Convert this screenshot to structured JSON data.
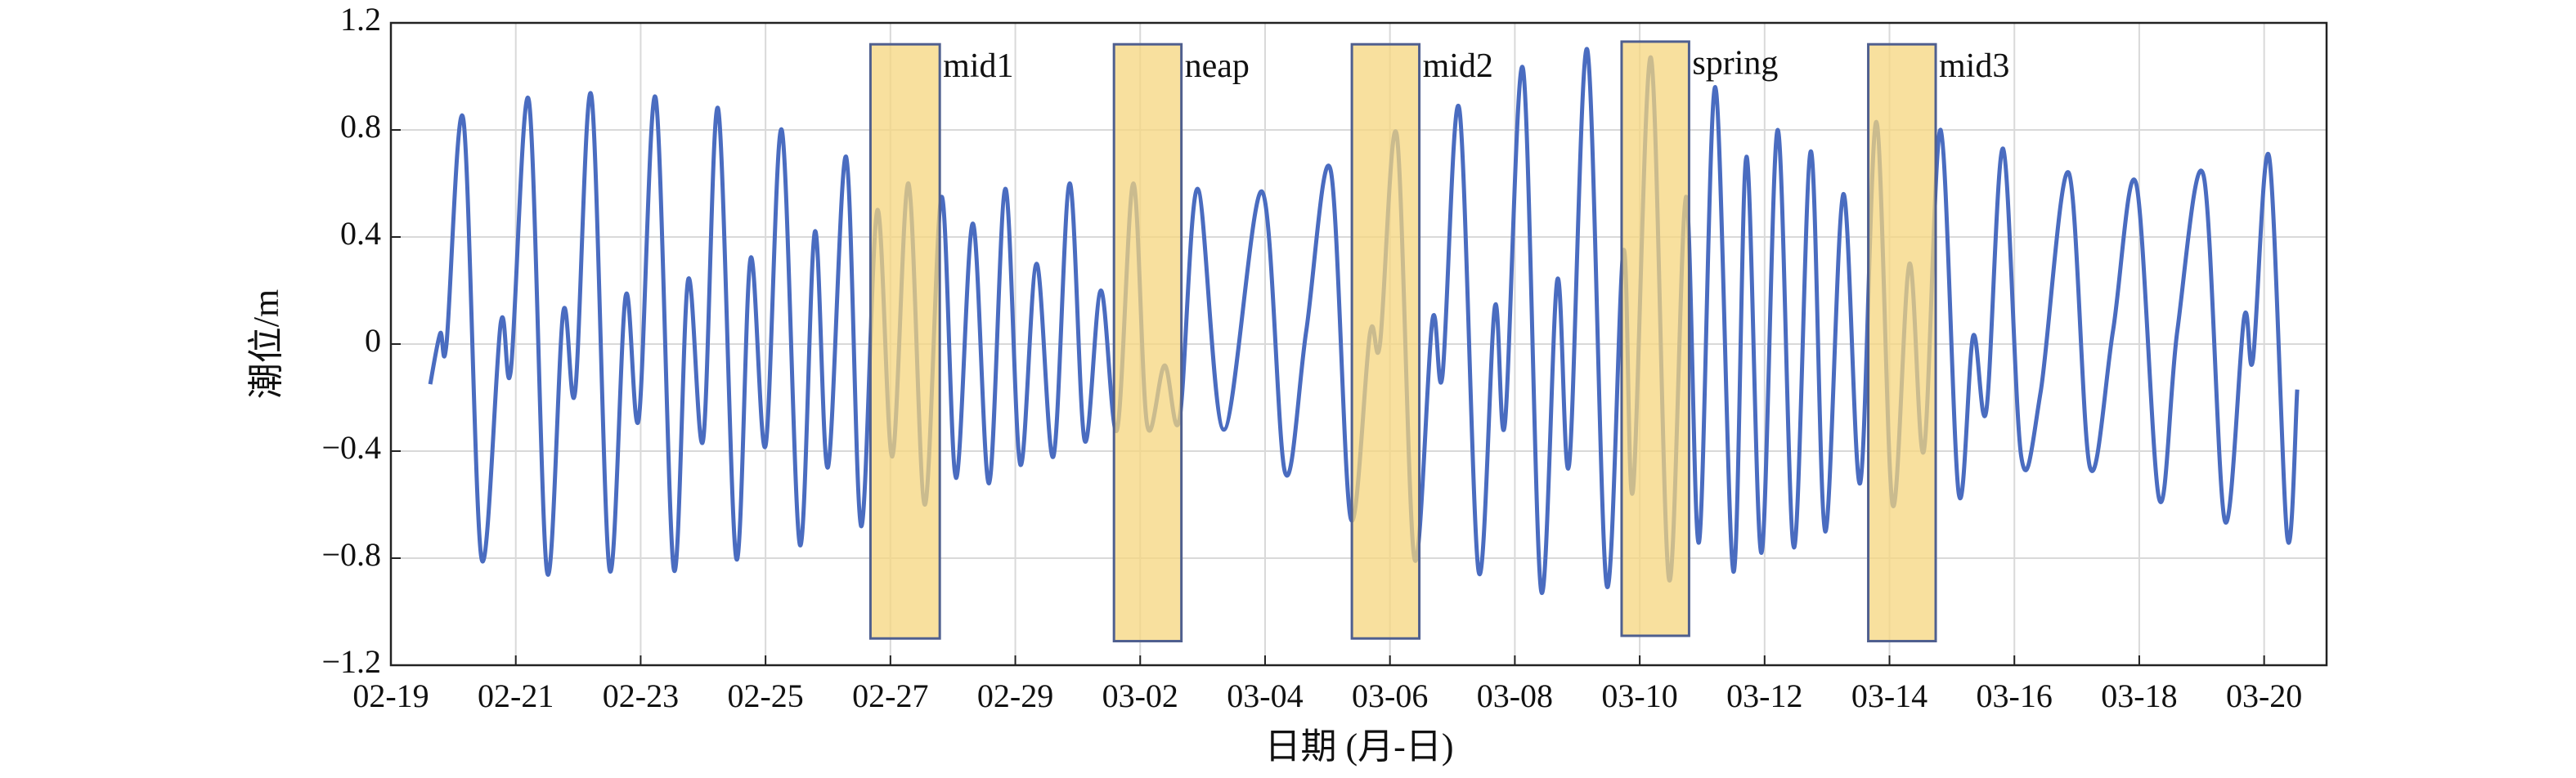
{
  "chart_data": {
    "type": "line",
    "x_label": "日期 (月-日)",
    "y_label": "潮位/m",
    "xlim": [
      0,
      31
    ],
    "ylim": [
      -1.2,
      1.2
    ],
    "xticks": [
      {
        "value": 0,
        "label": "02-19"
      },
      {
        "value": 2,
        "label": "02-21"
      },
      {
        "value": 4,
        "label": "02-23"
      },
      {
        "value": 6,
        "label": "02-25"
      },
      {
        "value": 8,
        "label": "02-27"
      },
      {
        "value": 10,
        "label": "02-29"
      },
      {
        "value": 12,
        "label": "03-02"
      },
      {
        "value": 14,
        "label": "03-04"
      },
      {
        "value": 16,
        "label": "03-06"
      },
      {
        "value": 18,
        "label": "03-08"
      },
      {
        "value": 20,
        "label": "03-10"
      },
      {
        "value": 22,
        "label": "03-12"
      },
      {
        "value": 24,
        "label": "03-14"
      },
      {
        "value": 26,
        "label": "03-16"
      },
      {
        "value": 28,
        "label": "03-18"
      },
      {
        "value": 30,
        "label": "03-20"
      }
    ],
    "yticks": [
      1.2,
      0.8,
      0.4,
      0,
      {
        "value": -0.4,
        "label": "−0.4"
      },
      {
        "value": -0.8,
        "label": "−0.8"
      },
      {
        "value": -1.2,
        "label": "−1.2"
      }
    ],
    "grid": true,
    "series": [
      {
        "color": "#4a6cc0",
        "x": [
          0.63,
          0.79,
          0.89,
          1.16,
          1.45,
          1.76,
          1.92,
          2.21,
          2.5,
          2.76,
          2.95,
          3.21,
          3.5,
          3.76,
          3.97,
          4.24,
          4.53,
          4.76,
          5.0,
          5.24,
          5.53,
          5.76,
          6.0,
          6.26,
          6.55,
          6.79,
          7.0,
          7.29,
          7.53,
          7.79,
          8.03,
          8.29,
          8.55,
          8.82,
          9.05,
          9.32,
          9.58,
          9.84,
          10.08,
          10.34,
          10.61,
          10.87,
          11.11,
          11.37,
          11.63,
          11.89,
          12.11,
          12.39,
          12.63,
          12.92,
          13.34,
          13.95,
          14.32,
          14.66,
          15.05,
          15.37,
          15.68,
          15.84,
          16.11,
          16.39,
          16.68,
          16.84,
          17.11,
          17.42,
          17.68,
          17.84,
          18.13,
          18.42,
          18.68,
          18.87,
          19.16,
          19.47,
          19.74,
          19.89,
          20.18,
          20.47,
          20.74,
          20.95,
          21.21,
          21.5,
          21.71,
          21.95,
          22.21,
          22.47,
          22.74,
          22.97,
          23.26,
          23.53,
          23.79,
          24.05,
          24.32,
          24.55,
          24.82,
          25.11,
          25.34,
          25.55,
          25.82,
          26.11,
          26.42,
          26.87,
          27.21,
          27.58,
          27.95,
          28.32,
          28.61,
          29.03,
          29.37,
          29.68,
          29.82,
          30.08,
          30.37,
          30.53
        ],
        "values": [
          -0.15,
          0.04,
          0.0,
          0.84,
          -0.8,
          0.08,
          -0.1,
          0.91,
          -0.85,
          0.12,
          -0.18,
          0.93,
          -0.84,
          0.18,
          -0.28,
          0.92,
          -0.84,
          0.24,
          -0.36,
          0.88,
          -0.8,
          0.32,
          -0.38,
          0.8,
          -0.75,
          0.42,
          -0.46,
          0.7,
          -0.68,
          0.5,
          -0.42,
          0.6,
          -0.6,
          0.55,
          -0.5,
          0.45,
          -0.52,
          0.58,
          -0.45,
          0.3,
          -0.42,
          0.6,
          -0.36,
          0.2,
          -0.32,
          0.6,
          -0.3,
          -0.08,
          -0.28,
          0.58,
          -0.32,
          0.57,
          -0.48,
          0.05,
          0.65,
          -0.65,
          0.04,
          0.0,
          0.78,
          -0.8,
          0.09,
          -0.12,
          0.88,
          -0.85,
          0.14,
          -0.3,
          1.03,
          -0.92,
          0.24,
          -0.45,
          1.1,
          -0.9,
          0.35,
          -0.55,
          1.07,
          -0.88,
          0.55,
          -0.74,
          0.96,
          -0.85,
          0.7,
          -0.78,
          0.8,
          -0.76,
          0.72,
          -0.7,
          0.56,
          -0.52,
          0.83,
          -0.6,
          0.3,
          -0.4,
          0.8,
          -0.56,
          0.03,
          -0.25,
          0.73,
          -0.42,
          -0.18,
          0.64,
          -0.46,
          0.05,
          0.6,
          -0.58,
          0.05,
          0.63,
          -0.66,
          0.1,
          -0.06,
          0.7,
          -0.72,
          -0.17
        ]
      }
    ],
    "annotations": [
      {
        "text": "mid1",
        "x0": 7.68,
        "x1": 8.79,
        "y0": -1.1,
        "y1": 1.12
      },
      {
        "text": "neap",
        "x0": 11.58,
        "x1": 12.66,
        "y0": -1.11,
        "y1": 1.12
      },
      {
        "text": "mid2",
        "x0": 15.39,
        "x1": 16.47,
        "y0": -1.1,
        "y1": 1.12
      },
      {
        "text": "spring",
        "x0": 19.71,
        "x1": 20.79,
        "y0": -1.09,
        "y1": 1.13
      },
      {
        "text": "mid3",
        "x0": 23.66,
        "x1": 24.74,
        "y0": -1.11,
        "y1": 1.12
      }
    ],
    "annotation_fill": "#f5d67e",
    "annotation_stroke": "#4f5f8f"
  }
}
